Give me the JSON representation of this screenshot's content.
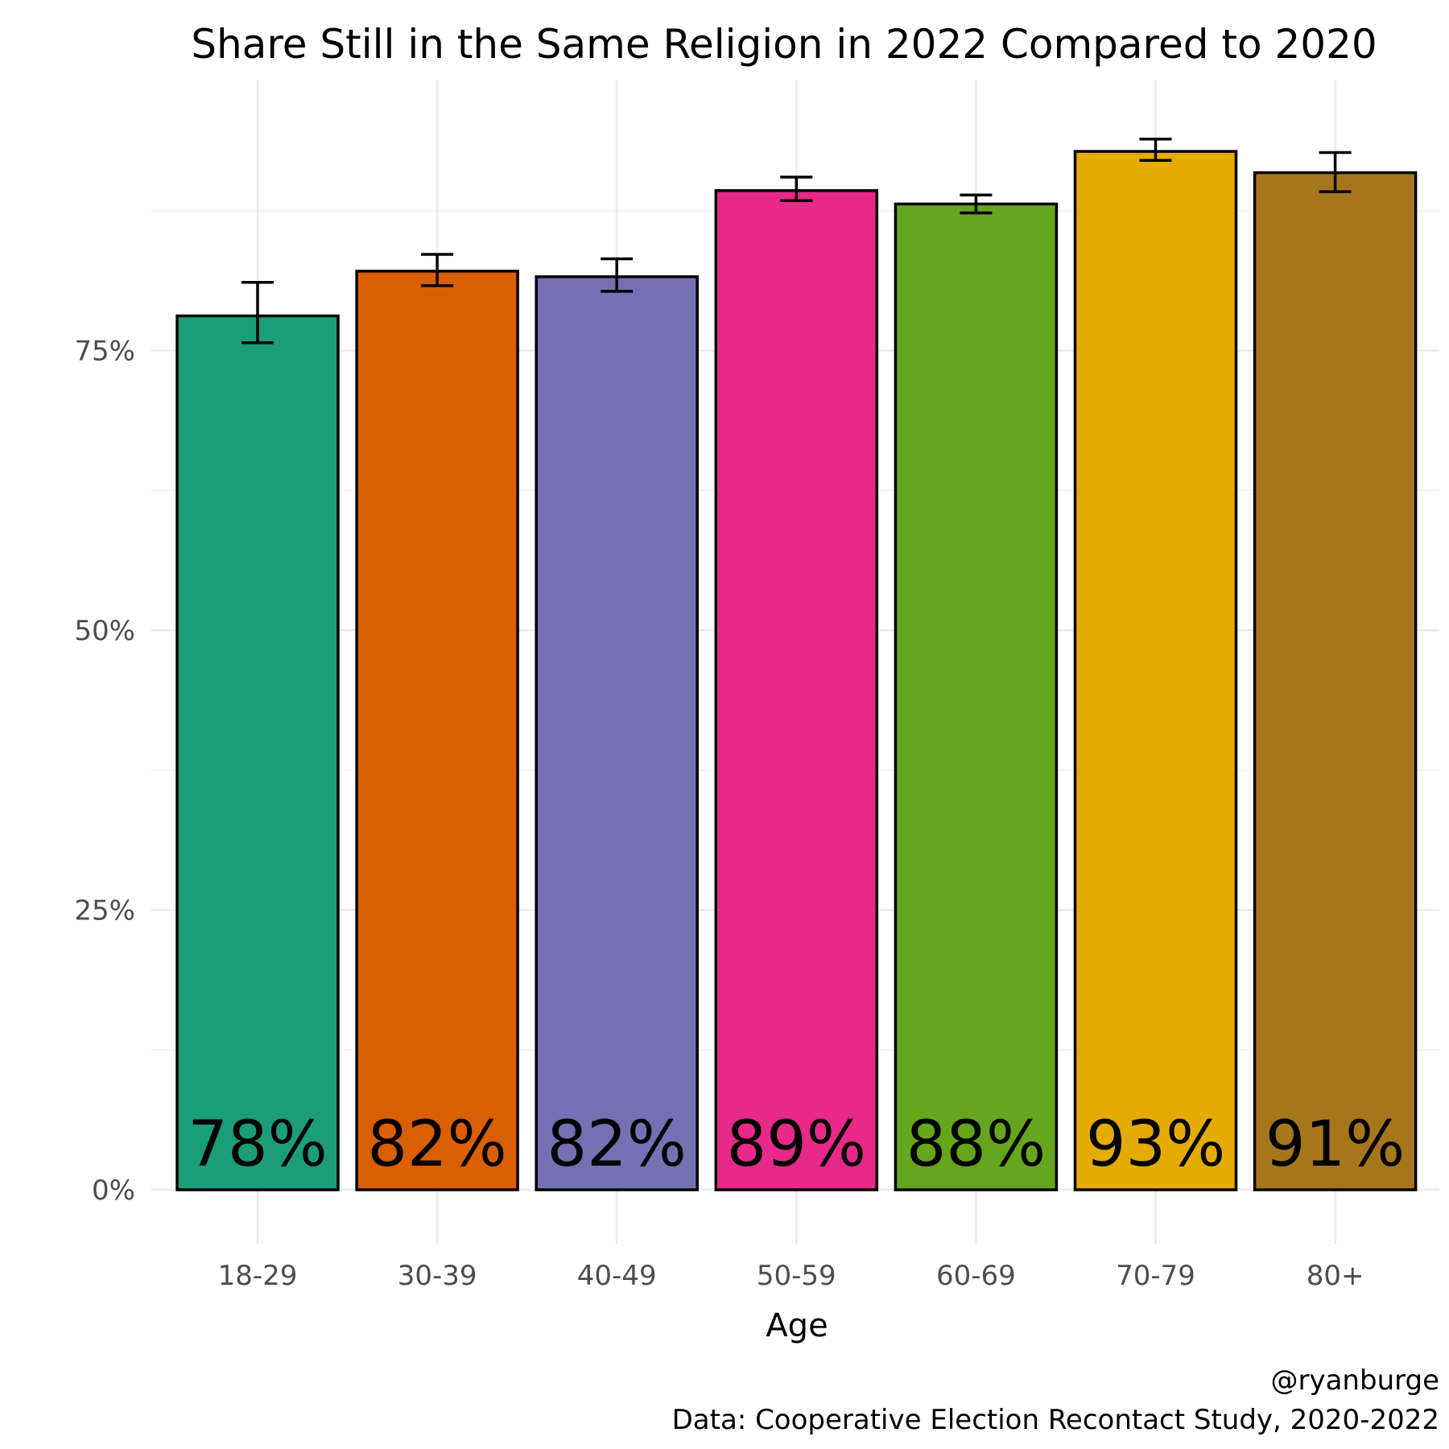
{
  "chart_data": {
    "type": "bar",
    "title": "Share Still in the Same Religion in 2022 Compared to 2020",
    "xlabel": "Age",
    "ylabel": "",
    "categories": [
      "18-29",
      "30-39",
      "40-49",
      "50-59",
      "60-69",
      "70-79",
      "80+"
    ],
    "values": [
      78.1,
      82.1,
      81.6,
      89.3,
      88.1,
      92.8,
      90.9
    ],
    "value_labels": [
      "78%",
      "82%",
      "82%",
      "89%",
      "88%",
      "93%",
      "91%"
    ],
    "error_lower": [
      75.7,
      80.8,
      80.3,
      88.4,
      87.3,
      92.0,
      89.2
    ],
    "error_upper": [
      81.1,
      83.6,
      83.2,
      90.5,
      88.9,
      93.9,
      92.7
    ],
    "colors": [
      "#1b9e77",
      "#d95f02",
      "#7570b3",
      "#e7298a",
      "#66a61e",
      "#e6ab02",
      "#a6761d"
    ],
    "ylim": [
      0,
      97
    ],
    "yticks": [
      0,
      25,
      50,
      75
    ],
    "ytick_labels": [
      "0%",
      "25%",
      "50%",
      "75%"
    ],
    "grid": true,
    "caption_lines": [
      "@ryanburge",
      "Data: Cooperative Election Recontact Study, 2020-2022"
    ]
  }
}
